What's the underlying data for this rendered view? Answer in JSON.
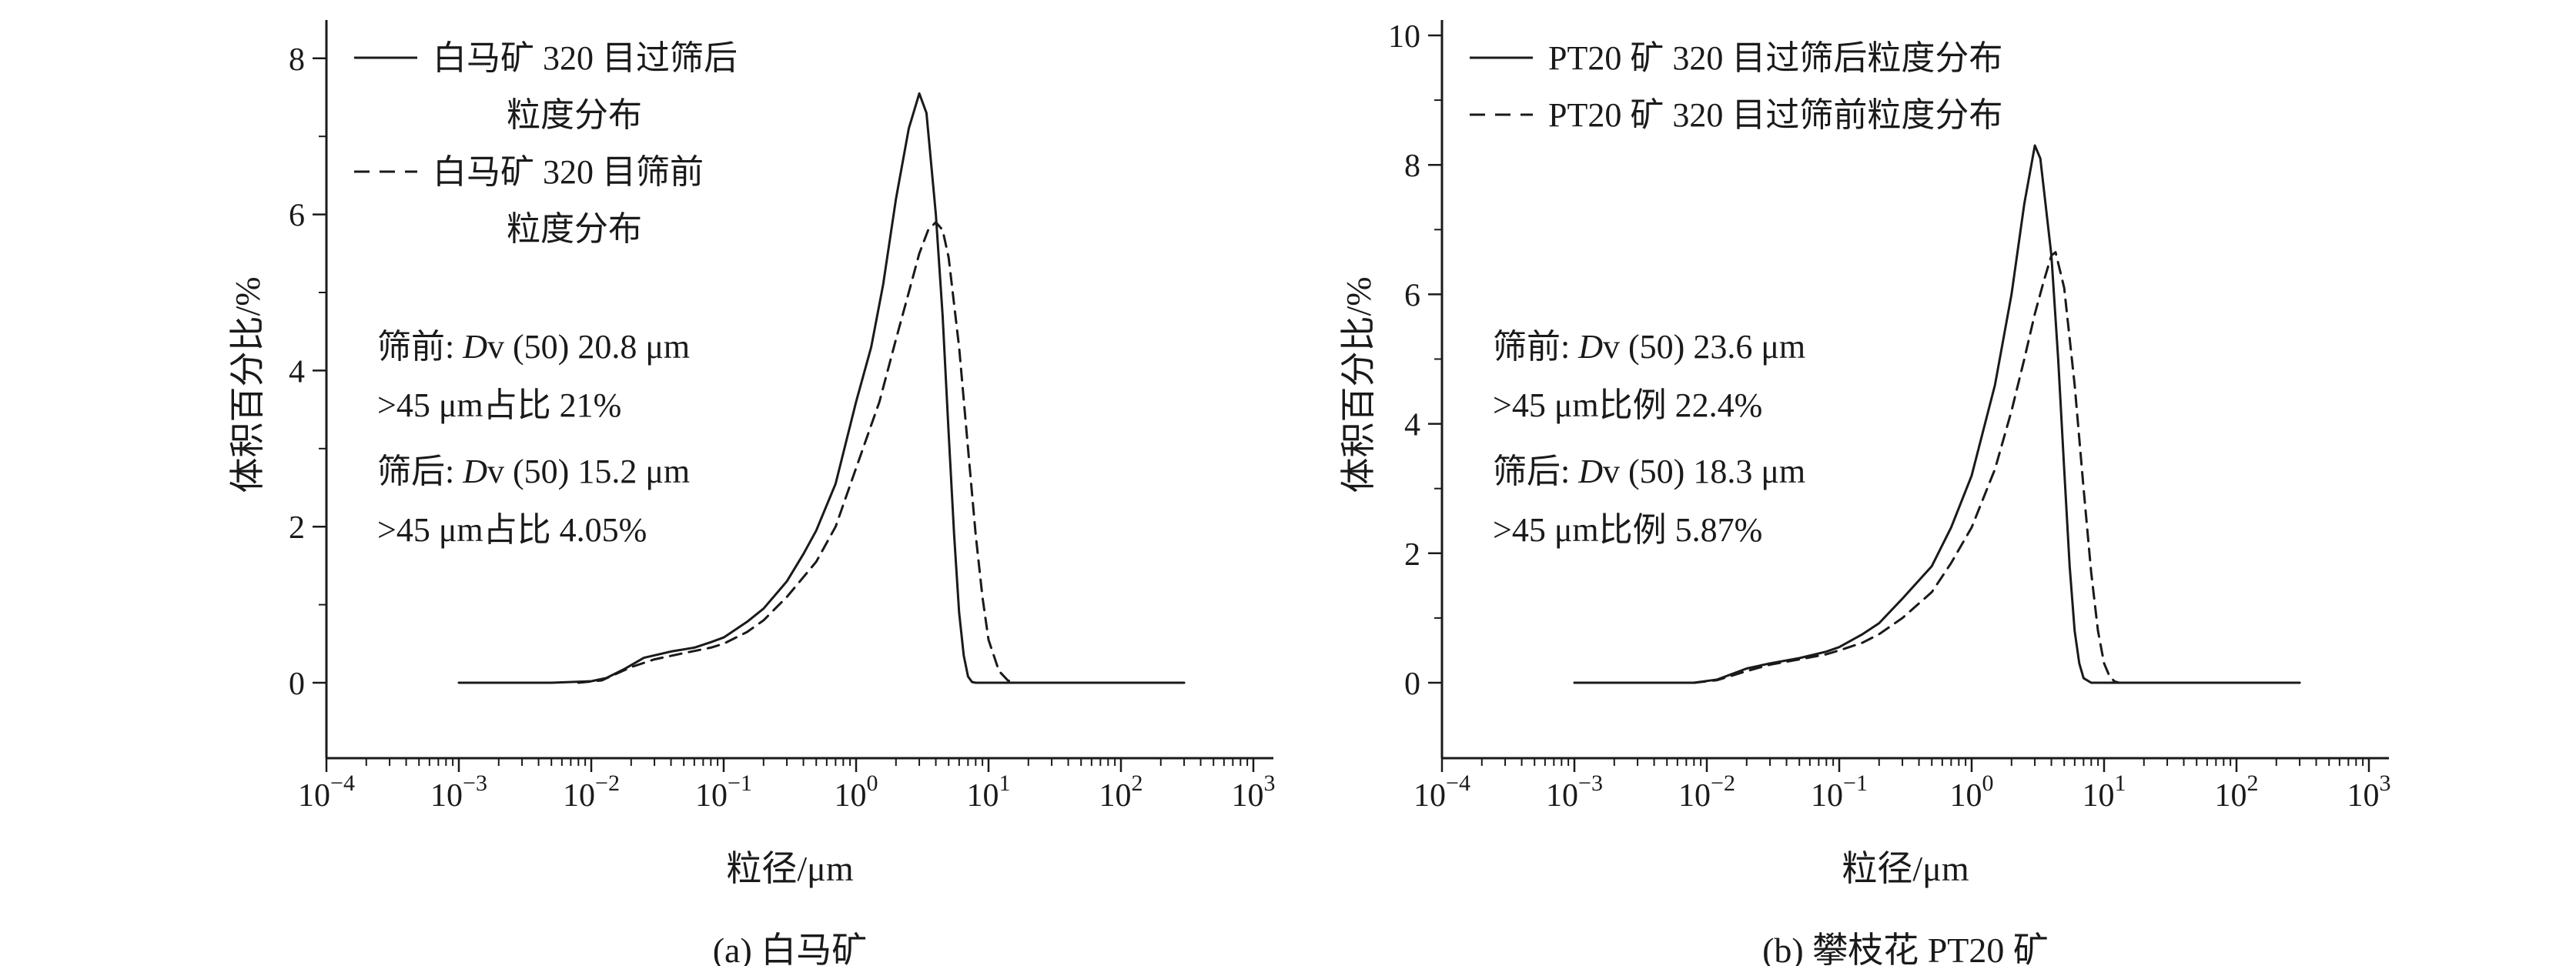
{
  "figure": {
    "background": "#ffffff",
    "line_color": "#1a1a1a"
  },
  "chart_data": [
    {
      "type": "line",
      "x_scale": "log",
      "xlabel": "粒径/μm",
      "ylabel": "体积百分比/%",
      "caption": "(a) 白马矿",
      "xlim": [
        0.0001,
        1000
      ],
      "ylim": [
        0,
        8
      ],
      "x_tick_exponents": [
        -4,
        -3,
        -2,
        -1,
        0,
        1,
        2,
        3
      ],
      "y_major_ticks": [
        0,
        2,
        4,
        6,
        8
      ],
      "y_minor_ticks": [
        1,
        3,
        5,
        7
      ],
      "grid": false,
      "legend_position": "top-left",
      "legend": [
        {
          "style": "solid",
          "lines": [
            "白马矿 320 目过筛后",
            "粒度分布"
          ]
        },
        {
          "style": "dashed",
          "lines": [
            "白马矿 320 目筛前",
            "粒度分布"
          ]
        }
      ],
      "annotation_lines": [
        [
          {
            "t": "筛前: "
          },
          {
            "t": "D",
            "i": true
          },
          {
            "t": "v (50) 20.8 μm"
          }
        ],
        [
          {
            "t": ">45 μm占比 21%"
          }
        ],
        [
          {
            "t": "筛后: "
          },
          {
            "t": "D",
            "i": true
          },
          {
            "t": "v (50) 15.2 μm"
          }
        ],
        [
          {
            "t": ">45 μm占比 4.05%"
          }
        ]
      ],
      "series": [
        {
          "name": "白马矿 320 目过筛后粒度分布",
          "style": "solid",
          "points": [
            [
              0.001,
              0
            ],
            [
              0.005,
              0
            ],
            [
              0.01,
              0.02
            ],
            [
              0.013,
              0.06
            ],
            [
              0.018,
              0.18
            ],
            [
              0.025,
              0.32
            ],
            [
              0.04,
              0.4
            ],
            [
              0.06,
              0.45
            ],
            [
              0.08,
              0.52
            ],
            [
              0.1,
              0.58
            ],
            [
              0.15,
              0.78
            ],
            [
              0.2,
              0.95
            ],
            [
              0.3,
              1.3
            ],
            [
              0.4,
              1.65
            ],
            [
              0.5,
              1.95
            ],
            [
              0.7,
              2.55
            ],
            [
              1,
              3.6
            ],
            [
              1.3,
              4.3
            ],
            [
              1.6,
              5.1
            ],
            [
              2,
              6.2
            ],
            [
              2.5,
              7.1
            ],
            [
              3,
              7.55
            ],
            [
              3.4,
              7.3
            ],
            [
              4,
              6.0
            ],
            [
              4.5,
              4.7
            ],
            [
              5,
              3.2
            ],
            [
              5.5,
              1.9
            ],
            [
              6,
              0.9
            ],
            [
              6.5,
              0.35
            ],
            [
              7,
              0.08
            ],
            [
              7.5,
              0.01
            ],
            [
              8,
              0
            ],
            [
              20,
              0
            ],
            [
              100,
              0
            ],
            [
              300,
              0
            ]
          ]
        },
        {
          "name": "白马矿 320 目筛前粒度分布",
          "style": "dashed",
          "points": [
            [
              0.008,
              0
            ],
            [
              0.012,
              0.03
            ],
            [
              0.02,
              0.2
            ],
            [
              0.03,
              0.3
            ],
            [
              0.05,
              0.38
            ],
            [
              0.08,
              0.45
            ],
            [
              0.1,
              0.5
            ],
            [
              0.15,
              0.65
            ],
            [
              0.2,
              0.8
            ],
            [
              0.3,
              1.1
            ],
            [
              0.5,
              1.55
            ],
            [
              0.7,
              2.0
            ],
            [
              1,
              2.75
            ],
            [
              1.5,
              3.6
            ],
            [
              2,
              4.4
            ],
            [
              2.5,
              5.0
            ],
            [
              3,
              5.5
            ],
            [
              3.5,
              5.8
            ],
            [
              4,
              5.9
            ],
            [
              4.5,
              5.8
            ],
            [
              5,
              5.45
            ],
            [
              6,
              4.3
            ],
            [
              7,
              3.0
            ],
            [
              8,
              1.9
            ],
            [
              9,
              1.1
            ],
            [
              10,
              0.55
            ],
            [
              12,
              0.15
            ],
            [
              14,
              0.03
            ],
            [
              16,
              0
            ]
          ]
        }
      ]
    },
    {
      "type": "line",
      "x_scale": "log",
      "xlabel": "粒径/μm",
      "ylabel": "体积百分比/%",
      "caption": "(b) 攀枝花 PT20 矿",
      "xlim": [
        0.0001,
        1000
      ],
      "ylim": [
        0,
        10
      ],
      "x_tick_exponents": [
        -4,
        -3,
        -2,
        -1,
        0,
        1,
        2,
        3
      ],
      "y_major_ticks": [
        0,
        2,
        4,
        6,
        8,
        10
      ],
      "y_minor_ticks": [
        1,
        3,
        5,
        7,
        9
      ],
      "grid": false,
      "legend_position": "top-left",
      "legend": [
        {
          "style": "solid",
          "lines": [
            "PT20 矿 320 目过筛后粒度分布"
          ]
        },
        {
          "style": "dashed",
          "lines": [
            "PT20 矿 320 目过筛前粒度分布"
          ]
        }
      ],
      "annotation_lines": [
        [
          {
            "t": "筛前: "
          },
          {
            "t": "D",
            "i": true
          },
          {
            "t": "v (50) 23.6 μm"
          }
        ],
        [
          {
            "t": ">45 μm比例 22.4%"
          }
        ],
        [
          {
            "t": "筛后: "
          },
          {
            "t": "D",
            "i": true
          },
          {
            "t": "v (50) 18.3 μm"
          }
        ],
        [
          {
            "t": ">45 μm比例 5.87%"
          }
        ]
      ],
      "series": [
        {
          "name": "PT20 矿 320 目过筛后粒度分布",
          "style": "solid",
          "points": [
            [
              0.001,
              0
            ],
            [
              0.008,
              0
            ],
            [
              0.012,
              0.05
            ],
            [
              0.02,
              0.22
            ],
            [
              0.03,
              0.3
            ],
            [
              0.05,
              0.38
            ],
            [
              0.08,
              0.48
            ],
            [
              0.1,
              0.55
            ],
            [
              0.15,
              0.75
            ],
            [
              0.2,
              0.92
            ],
            [
              0.3,
              1.3
            ],
            [
              0.5,
              1.8
            ],
            [
              0.7,
              2.4
            ],
            [
              1,
              3.2
            ],
            [
              1.5,
              4.6
            ],
            [
              2,
              6.0
            ],
            [
              2.5,
              7.4
            ],
            [
              3,
              8.3
            ],
            [
              3.3,
              8.1
            ],
            [
              4,
              6.6
            ],
            [
              4.5,
              5.0
            ],
            [
              5,
              3.3
            ],
            [
              5.5,
              1.8
            ],
            [
              6,
              0.8
            ],
            [
              6.5,
              0.3
            ],
            [
              7,
              0.07
            ],
            [
              8,
              0
            ],
            [
              20,
              0
            ],
            [
              100,
              0
            ],
            [
              300,
              0
            ]
          ]
        },
        {
          "name": "PT20 矿 320 目过筛前粒度分布",
          "style": "dashed",
          "points": [
            [
              0.008,
              0
            ],
            [
              0.012,
              0.04
            ],
            [
              0.02,
              0.18
            ],
            [
              0.03,
              0.28
            ],
            [
              0.05,
              0.36
            ],
            [
              0.08,
              0.44
            ],
            [
              0.1,
              0.5
            ],
            [
              0.15,
              0.62
            ],
            [
              0.2,
              0.75
            ],
            [
              0.3,
              1.0
            ],
            [
              0.5,
              1.4
            ],
            [
              0.7,
              1.85
            ],
            [
              1,
              2.4
            ],
            [
              1.5,
              3.3
            ],
            [
              2,
              4.2
            ],
            [
              2.5,
              5.0
            ],
            [
              3,
              5.7
            ],
            [
              3.5,
              6.2
            ],
            [
              4,
              6.6
            ],
            [
              4.3,
              6.65
            ],
            [
              5,
              6.1
            ],
            [
              6,
              4.6
            ],
            [
              7,
              3.0
            ],
            [
              8,
              1.7
            ],
            [
              9,
              0.8
            ],
            [
              10,
              0.3
            ],
            [
              11,
              0.1
            ],
            [
              12,
              0.02
            ],
            [
              13,
              0
            ]
          ]
        }
      ]
    }
  ]
}
